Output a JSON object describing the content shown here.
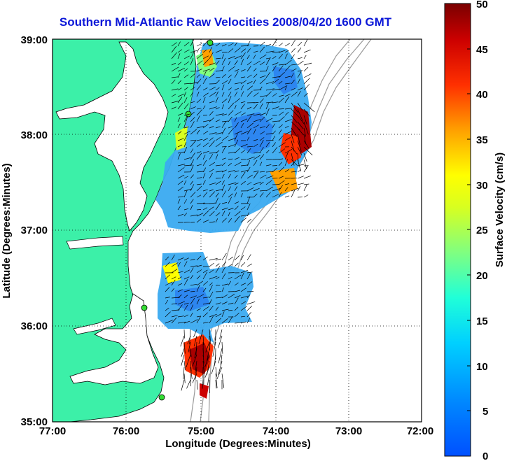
{
  "title": "Southern Mid-Atlantic Raw Velocities 2008/04/20 1600 GMT",
  "axes": {
    "xlabel": "Longitude (Degrees:Minutes)",
    "ylabel": "Latitude (Degrees:Minutes)",
    "xticks": [
      "77:00",
      "76:00",
      "75:00",
      "74:00",
      "73:00",
      "72:00"
    ],
    "yticks": [
      "39:00",
      "38:00",
      "37:00",
      "36:00",
      "35:00"
    ],
    "xlim": [
      -77,
      -72
    ],
    "ylim": [
      35,
      39
    ]
  },
  "colorbar": {
    "label": "Surface Velocity (cm/s)",
    "ticks": [
      "50",
      "45",
      "40",
      "35",
      "30",
      "25",
      "20",
      "15",
      "10",
      "5",
      "0"
    ],
    "range": [
      0,
      50
    ]
  },
  "colors": {
    "land": "#3cf0a8",
    "ocean": "#ffffff",
    "title": "#0b17d8",
    "station": "#33dd33"
  }
}
